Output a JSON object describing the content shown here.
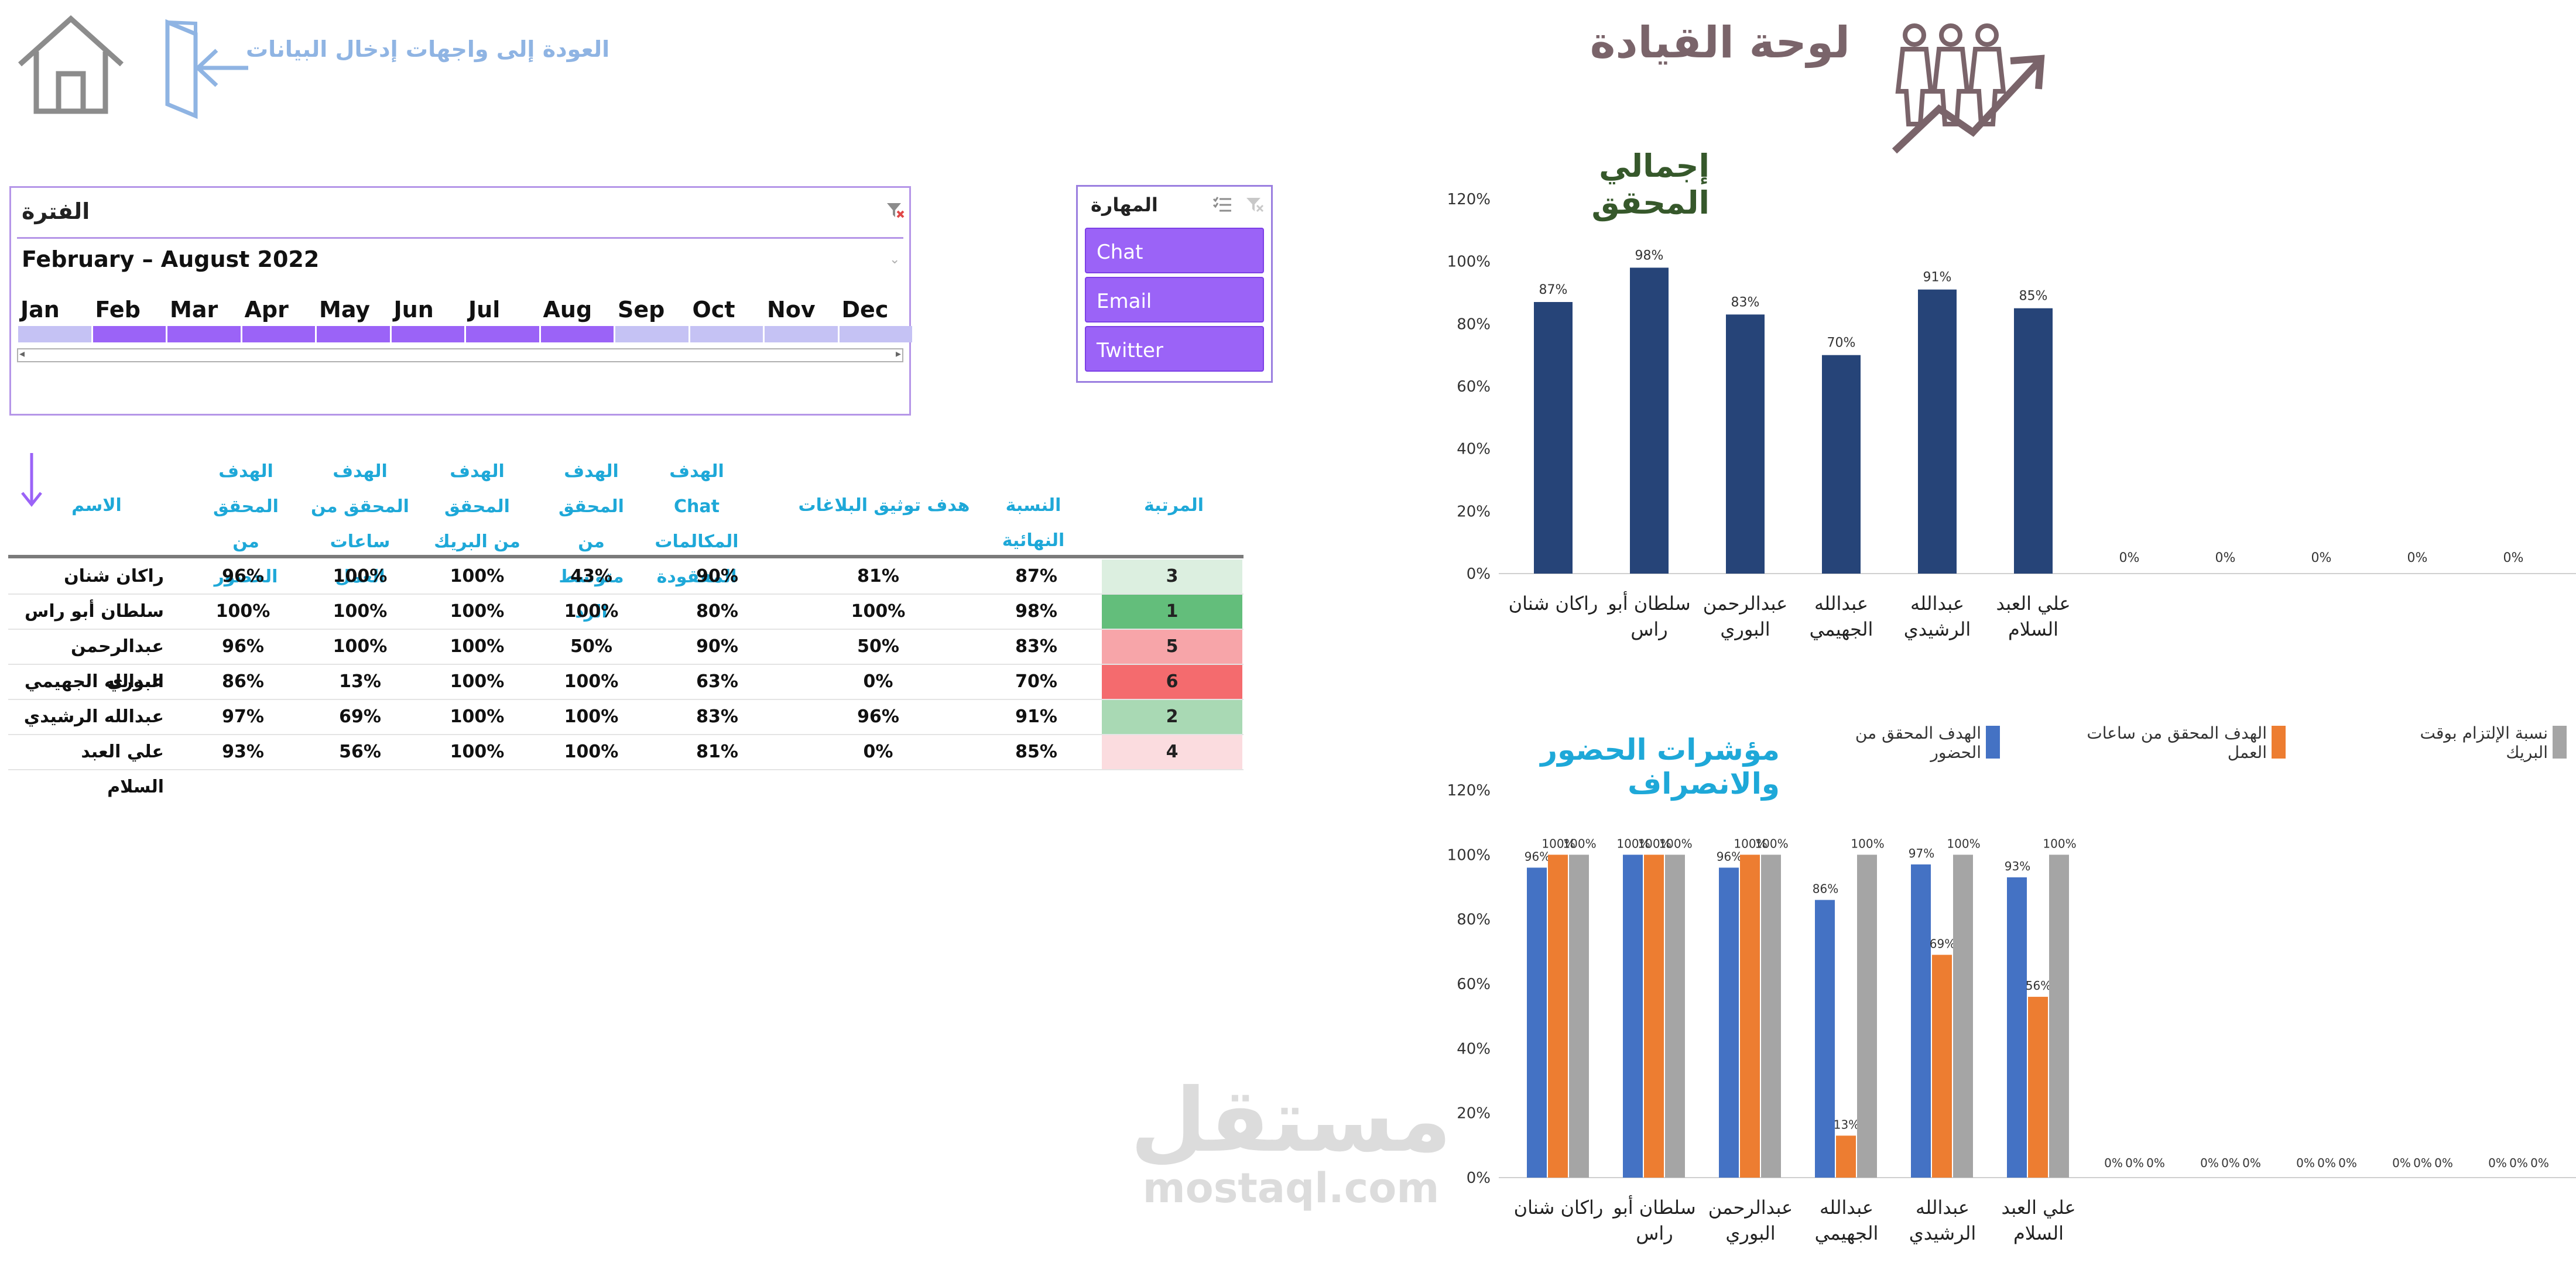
{
  "header": {
    "title": "لوحة القيادة",
    "back_link": "العودة إلى واجهات إدخال البيانات"
  },
  "timeline": {
    "title": "الفترة",
    "period": "February – August 2022",
    "months": [
      "Jan",
      "Feb",
      "Mar",
      "Apr",
      "May",
      "Jun",
      "Jul",
      "Aug",
      "Sep",
      "Oct",
      "Nov",
      "Dec"
    ],
    "selected_from": 1,
    "selected_to": 7
  },
  "skill_slicer": {
    "title": "المهارة",
    "items": [
      "Chat",
      "Email",
      "Twitter"
    ]
  },
  "table": {
    "headers": {
      "name": "الاسم",
      "attendance": "الهدف المحقق من الحضور",
      "work_hours": "الهدف المحقق من ساعات العمل",
      "break": "الهدف المحقق من البريك",
      "avg_response": "الهدف المحقق من متوسط الرد",
      "lost_calls": "الهدف Chat المكالمات المفقودة",
      "ticket_doc": "هدف توثيق البلاغات",
      "final_pct": "النسبة النهائية",
      "rank": "المرتبة"
    },
    "rows": [
      {
        "name": "راكان شنان",
        "attendance": "96%",
        "work_hours": "100%",
        "break": "100%",
        "avg_response": "43%",
        "lost_calls": "90%",
        "ticket_doc": "81%",
        "final_pct": "87%",
        "rank": "3"
      },
      {
        "name": "سلطان أبو راس",
        "attendance": "100%",
        "work_hours": "100%",
        "break": "100%",
        "avg_response": "100%",
        "lost_calls": "80%",
        "ticket_doc": "100%",
        "final_pct": "98%",
        "rank": "1"
      },
      {
        "name": "عبدالرحمن البوري",
        "attendance": "96%",
        "work_hours": "100%",
        "break": "100%",
        "avg_response": "50%",
        "lost_calls": "90%",
        "ticket_doc": "50%",
        "final_pct": "83%",
        "rank": "5"
      },
      {
        "name": "عبدالله الجهيمي",
        "attendance": "86%",
        "work_hours": "13%",
        "break": "100%",
        "avg_response": "100%",
        "lost_calls": "63%",
        "ticket_doc": "0%",
        "final_pct": "70%",
        "rank": "6"
      },
      {
        "name": "عبدالله الرشيدي",
        "attendance": "97%",
        "work_hours": "69%",
        "break": "100%",
        "avg_response": "100%",
        "lost_calls": "83%",
        "ticket_doc": "96%",
        "final_pct": "91%",
        "rank": "2"
      },
      {
        "name": "علي العبد السلام",
        "attendance": "93%",
        "work_hours": "56%",
        "break": "100%",
        "avg_response": "100%",
        "lost_calls": "81%",
        "ticket_doc": "0%",
        "final_pct": "85%",
        "rank": "4"
      }
    ],
    "rank_colors": {
      "1": "#63be7b",
      "2": "#a9d9b4",
      "3": "#dcefe0",
      "4": "#fbdcdf",
      "5": "#f7a5a9",
      "6": "#f46b6e"
    }
  },
  "chart_data": [
    {
      "type": "bar",
      "title": "إجمالي المحقق",
      "categories": [
        [
          "راكان شنان"
        ],
        [
          "سلطان أبو",
          "راس"
        ],
        [
          "عبدالرحمن",
          "البوري"
        ],
        [
          "عبدالله",
          "الجهيمي"
        ],
        [
          "عبدالله",
          "الرشيدي"
        ],
        [
          "علي العبد",
          "السلام"
        ],
        [
          ""
        ],
        [
          ""
        ],
        [
          ""
        ],
        [
          ""
        ],
        [
          ""
        ]
      ],
      "values": [
        0.87,
        0.98,
        0.83,
        0.7,
        0.91,
        0.85,
        0,
        0,
        0,
        0,
        0
      ],
      "data_labels": [
        "87%",
        "98%",
        "83%",
        "70%",
        "91%",
        "85%",
        "0%",
        "0%",
        "0%",
        "0%",
        "0%"
      ],
      "y_ticks": [
        "0%",
        "20%",
        "40%",
        "60%",
        "80%",
        "100%",
        "120%"
      ],
      "ylim": [
        0,
        1.2
      ],
      "color": "#264478"
    },
    {
      "type": "bar",
      "title": "مؤشرات الحضور والانصراف",
      "categories": [
        [
          "راكان شنان"
        ],
        [
          "سلطان أبو",
          "راس"
        ],
        [
          "عبدالرحمن",
          "البوري"
        ],
        [
          "عبدالله",
          "الجهيمي"
        ],
        [
          "عبدالله",
          "الرشيدي"
        ],
        [
          "علي العبد",
          "السلام"
        ],
        [
          ""
        ],
        [
          ""
        ],
        [
          ""
        ],
        [
          ""
        ],
        [
          ""
        ],
        [
          ""
        ]
      ],
      "series": [
        {
          "name": "الهدف المحقق من الحضور",
          "color": "#4472c4",
          "values": [
            0.96,
            1.0,
            0.96,
            0.86,
            0.97,
            0.93,
            0,
            0,
            0,
            0,
            0,
            0
          ],
          "labels": [
            "96%",
            "100%",
            "96%",
            "86%",
            "97%",
            "93%",
            "0%",
            "0%",
            "0%",
            "0%",
            "0%",
            "0%"
          ]
        },
        {
          "name": "الهدف المحقق من ساعات العمل",
          "color": "#ed7d31",
          "values": [
            1.0,
            1.0,
            1.0,
            0.13,
            0.69,
            0.56,
            0,
            0,
            0,
            0,
            0,
            0
          ],
          "labels": [
            "100%",
            "100%",
            "100%",
            "13%",
            "69%",
            "56%",
            "0%",
            "0%",
            "0%",
            "0%",
            "0%",
            "0%"
          ]
        },
        {
          "name": "نسبة الإلتزام بوقت البريك",
          "color": "#a5a5a5",
          "values": [
            1.0,
            1.0,
            1.0,
            1.0,
            1.0,
            1.0,
            0,
            0,
            0,
            0,
            0,
            0
          ],
          "labels": [
            "100%",
            "100%",
            "100%",
            "100%",
            "100%",
            "100%",
            "0%",
            "0%",
            "0%",
            "0%",
            "0%",
            "0%"
          ]
        }
      ],
      "y_ticks": [
        "0%",
        "20%",
        "40%",
        "60%",
        "80%",
        "100%",
        "120%"
      ],
      "ylim": [
        0,
        1.2
      ],
      "legend_position": "top"
    }
  ],
  "watermark": {
    "line1": "مستقل",
    "line2": "mostaql.com"
  }
}
